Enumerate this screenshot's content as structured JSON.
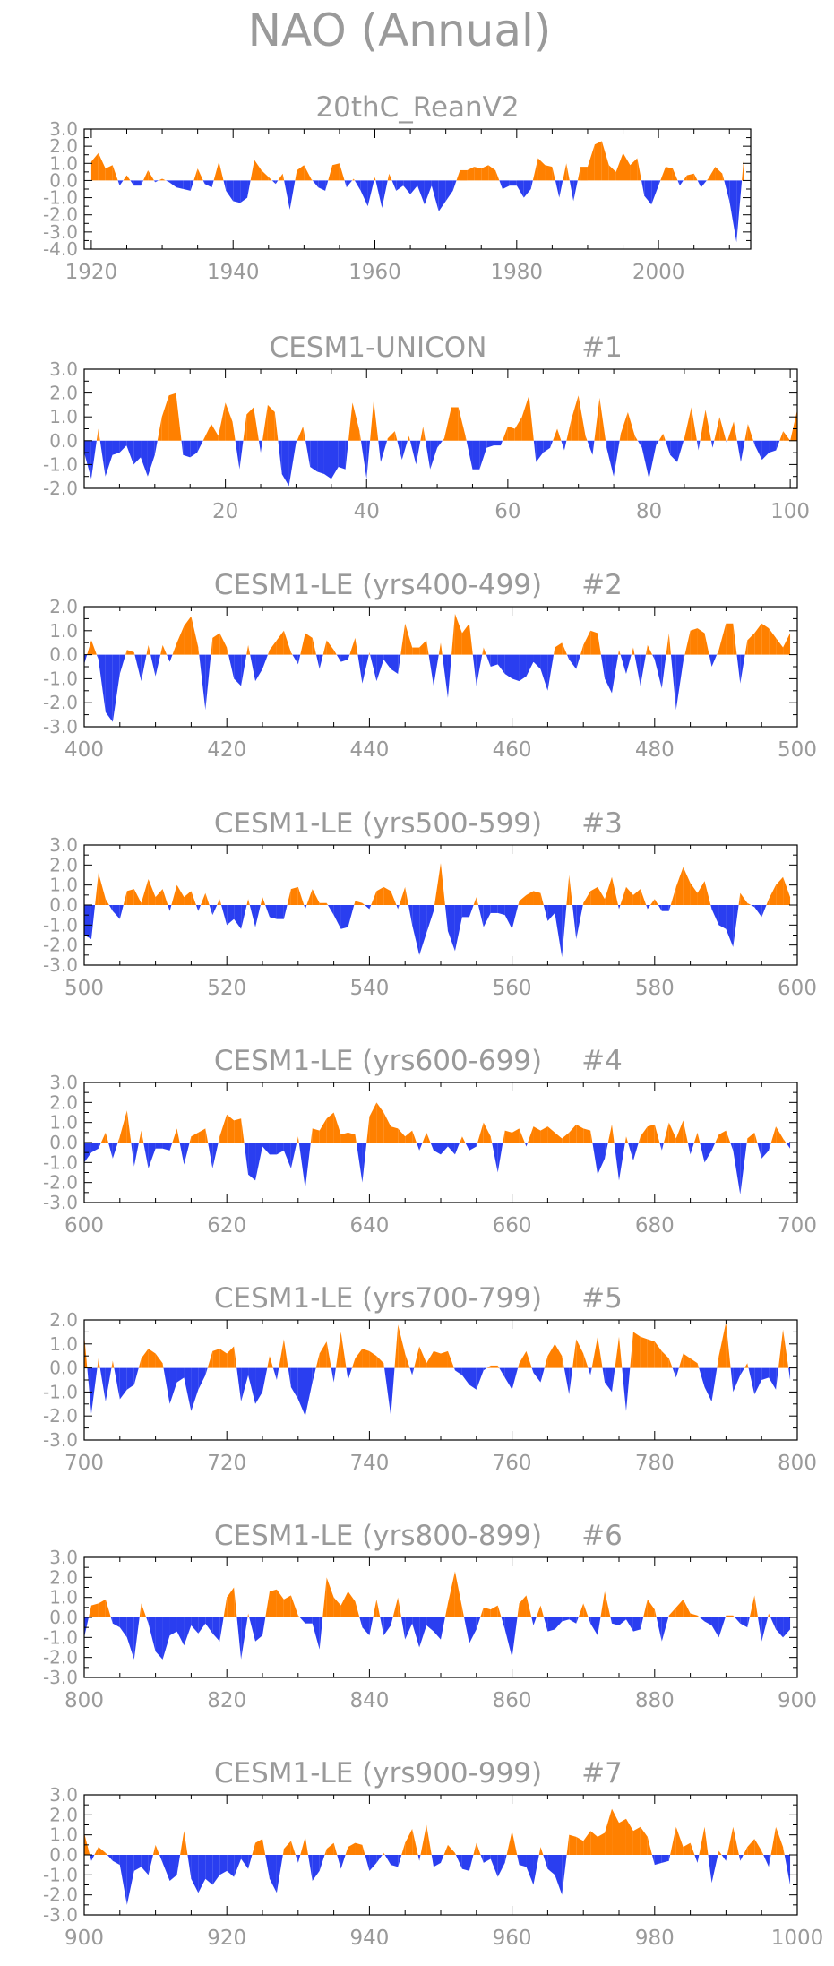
{
  "title": "NAO (Annual)",
  "colors": {
    "positive": "#ff8000",
    "negative": "#2a3ef0",
    "text": "#9a9a9a",
    "axis": "#000000"
  },
  "chart_data": [
    {
      "type": "area",
      "title": "20thC_ReanV2",
      "x_start": 1920,
      "x_end": 2012,
      "xlim": [
        1919,
        2013
      ],
      "xticks": [
        1920,
        1940,
        1960,
        1980,
        2000
      ],
      "ylim": [
        -4.0,
        3.0
      ],
      "yticks": [
        "3.0",
        "2.0",
        "1.0",
        "0.0",
        "-1.0",
        "-2.0",
        "-3.0",
        "-4.0"
      ],
      "values": [
        1.1,
        1.6,
        0.7,
        0.9,
        -0.3,
        0.3,
        -0.3,
        -0.3,
        0.6,
        -0.1,
        0.1,
        -0.1,
        -0.4,
        -0.5,
        -0.6,
        0.7,
        -0.2,
        -0.4,
        1.1,
        -0.6,
        -1.2,
        -1.3,
        -1.0,
        1.2,
        0.6,
        0.2,
        -0.2,
        0.4,
        -1.7,
        0.6,
        0.9,
        0.1,
        -0.4,
        -0.6,
        0.9,
        1.0,
        -0.4,
        0.1,
        -0.6,
        -1.5,
        0.2,
        -1.6,
        0.4,
        -0.6,
        -0.3,
        -0.8,
        -0.3,
        -1.4,
        -0.3,
        -1.8,
        -1.2,
        -0.6,
        0.6,
        0.6,
        0.8,
        0.7,
        0.9,
        0.6,
        -0.5,
        -0.3,
        -0.3,
        -1.0,
        -0.5,
        1.3,
        0.9,
        0.8,
        -1.0,
        1.0,
        -1.2,
        0.8,
        0.8,
        2.1,
        2.3,
        0.9,
        0.5,
        1.6,
        0.9,
        1.3,
        -0.9,
        -1.4,
        -0.3,
        0.8,
        0.7,
        -0.3,
        0.3,
        0.4,
        -0.4,
        0.1,
        0.8,
        0.4,
        -1.2,
        -3.6,
        1.2
      ]
    },
    {
      "type": "area",
      "title": "CESM1-UNICON",
      "tag": "#1",
      "x_start": 0,
      "x_end": 101,
      "xlim": [
        0,
        101
      ],
      "xticks": [
        20,
        40,
        60,
        80,
        100
      ],
      "ylim": [
        -2.0,
        3.0
      ],
      "yticks": [
        "3.0",
        "2.0",
        "1.0",
        "0.0",
        "-1.0",
        "-2.0"
      ],
      "values": [
        -0.5,
        -1.6,
        0.5,
        -1.5,
        -0.6,
        -0.5,
        -0.2,
        -1.0,
        -0.7,
        -1.5,
        -0.6,
        1.0,
        1.9,
        2.0,
        -0.6,
        -0.7,
        -0.5,
        0.1,
        0.7,
        0.2,
        1.6,
        0.8,
        -1.2,
        1.1,
        1.4,
        -0.5,
        1.5,
        1.2,
        -1.4,
        -1.9,
        -0.1,
        0.6,
        -1.1,
        -1.3,
        -1.4,
        -1.6,
        -1.1,
        -1.2,
        1.6,
        0.4,
        -1.6,
        1.7,
        -0.9,
        0.1,
        0.4,
        -0.8,
        0.2,
        -1.0,
        0.6,
        -1.2,
        -0.3,
        0.1,
        1.4,
        1.4,
        0.2,
        -1.2,
        -1.2,
        -0.3,
        -0.2,
        -0.2,
        0.6,
        0.5,
        1.0,
        1.9,
        -0.9,
        -0.5,
        -0.3,
        0.5,
        -0.4,
        0.9,
        1.9,
        0.2,
        -0.6,
        1.8,
        -0.3,
        -1.5,
        0.3,
        1.2,
        0.2,
        -0.3,
        -1.6,
        -0.2,
        0.3,
        -0.6,
        -0.9,
        0.1,
        1.4,
        -0.4,
        1.3,
        -0.3,
        1.0,
        -0.1,
        0.8,
        -0.9,
        0.7,
        -0.2,
        -0.8,
        -0.5,
        -0.4,
        0.4,
        0.0,
        1.3
      ]
    },
    {
      "type": "area",
      "title": "CESM1-LE (yrs400-499)",
      "tag": "#2",
      "x_start": 400,
      "x_end": 499,
      "xlim": [
        400,
        500
      ],
      "xticks": [
        400,
        420,
        440,
        460,
        480,
        500
      ],
      "ylim": [
        -3.0,
        2.0
      ],
      "yticks": [
        "2.0",
        "1.0",
        "0.0",
        "-1.0",
        "-2.0",
        "-3.0"
      ],
      "values": [
        -0.4,
        0.6,
        -0.2,
        -2.4,
        -2.8,
        -0.8,
        0.2,
        0.1,
        -1.1,
        0.4,
        -0.9,
        0.4,
        -0.3,
        0.5,
        1.2,
        1.6,
        0.3,
        -2.3,
        0.7,
        0.9,
        0.3,
        -1.0,
        -1.3,
        0.4,
        -1.1,
        -0.6,
        0.2,
        0.6,
        1.0,
        0.1,
        -0.4,
        0.9,
        0.7,
        -0.6,
        0.6,
        0.2,
        -0.3,
        -0.2,
        0.7,
        -1.2,
        0.1,
        -1.1,
        -0.2,
        -0.6,
        -0.8,
        1.3,
        0.3,
        0.3,
        0.6,
        -1.3,
        0.5,
        -1.8,
        1.7,
        0.9,
        1.3,
        -1.3,
        0.3,
        -0.5,
        -0.4,
        -0.8,
        -1.0,
        -1.1,
        -0.9,
        -0.3,
        -0.6,
        -1.5,
        0.3,
        0.5,
        -0.2,
        -0.6,
        0.4,
        1.0,
        0.9,
        -1.0,
        -1.6,
        0.2,
        -0.8,
        0.3,
        -1.3,
        0.4,
        -0.2,
        -1.4,
        0.9,
        -2.3,
        -0.3,
        1.0,
        1.1,
        0.9,
        -0.5,
        0.2,
        1.3,
        1.3,
        -1.2,
        0.6,
        0.9,
        1.3,
        1.1,
        0.7,
        0.3,
        0.9
      ]
    },
    {
      "type": "area",
      "title": "CESM1-LE (yrs500-599)",
      "tag": "#3",
      "x_start": 500,
      "x_end": 599,
      "xlim": [
        500,
        600
      ],
      "xticks": [
        500,
        520,
        540,
        560,
        580,
        600
      ],
      "ylim": [
        -3.0,
        3.0
      ],
      "yticks": [
        "3.0",
        "2.0",
        "1.0",
        "0.0",
        "-1.0",
        "-2.0",
        "-3.0"
      ],
      "values": [
        -1.5,
        -1.7,
        1.6,
        0.3,
        -0.3,
        -0.7,
        0.7,
        0.8,
        0.1,
        1.3,
        0.4,
        0.8,
        -0.3,
        1.0,
        0.4,
        0.7,
        -0.3,
        0.6,
        -0.5,
        0.3,
        -1.0,
        -0.7,
        -1.2,
        0.3,
        -1.1,
        0.4,
        -0.6,
        -0.7,
        -0.7,
        0.8,
        0.9,
        -0.2,
        0.8,
        0.1,
        0.1,
        -0.5,
        -1.2,
        -1.1,
        0.2,
        0.1,
        -0.2,
        0.7,
        0.9,
        0.7,
        -0.2,
        0.9,
        -1.0,
        -2.5,
        -1.4,
        -0.3,
        2.1,
        -1.3,
        -2.3,
        -0.6,
        -0.6,
        0.4,
        -1.1,
        -0.4,
        -0.4,
        -0.5,
        -1.2,
        0.2,
        0.5,
        0.7,
        0.6,
        -0.8,
        -0.4,
        -2.6,
        1.5,
        -1.7,
        0.1,
        0.7,
        0.9,
        0.3,
        1.4,
        -0.2,
        0.9,
        0.5,
        0.8,
        -0.2,
        0.3,
        -0.3,
        -0.3,
        0.9,
        1.9,
        1.1,
        0.6,
        1.2,
        -0.2,
        -1.0,
        -1.2,
        -2.1,
        0.6,
        0.1,
        -0.1,
        -0.6,
        0.3,
        1.0,
        1.4,
        0.4
      ]
    },
    {
      "type": "area",
      "title": "CESM1-LE (yrs600-699)",
      "tag": "#4",
      "x_start": 600,
      "x_end": 699,
      "xlim": [
        600,
        700
      ],
      "xticks": [
        600,
        620,
        640,
        660,
        680,
        700
      ],
      "ylim": [
        -3.0,
        3.0
      ],
      "yticks": [
        "3.0",
        "2.0",
        "1.0",
        "0.0",
        "-1.0",
        "-2.0",
        "-3.0"
      ],
      "values": [
        -1.0,
        -0.5,
        -0.3,
        0.5,
        -0.8,
        0.3,
        1.6,
        -1.2,
        0.6,
        -1.3,
        -0.3,
        -0.3,
        -0.4,
        0.7,
        -1.1,
        0.3,
        0.5,
        0.7,
        -1.3,
        0.3,
        1.4,
        1.1,
        1.2,
        -1.6,
        -1.9,
        -0.2,
        -0.6,
        -0.6,
        -0.4,
        -1.3,
        0.3,
        -2.3,
        0.7,
        0.6,
        1.2,
        1.5,
        0.4,
        0.5,
        0.4,
        -2.0,
        1.3,
        2.0,
        1.5,
        0.8,
        0.7,
        0.3,
        0.6,
        -0.4,
        0.5,
        -0.4,
        -0.6,
        -0.2,
        -0.6,
        0.3,
        -0.4,
        -0.2,
        1.0,
        0.3,
        -1.5,
        0.6,
        0.5,
        0.7,
        -0.2,
        0.8,
        0.6,
        0.8,
        0.5,
        0.2,
        0.5,
        0.9,
        0.7,
        0.6,
        -1.6,
        -0.8,
        0.9,
        -1.9,
        0.3,
        -0.9,
        0.3,
        0.8,
        0.9,
        -0.4,
        1.0,
        0.2,
        1.1,
        -0.6,
        0.5,
        -1.0,
        -0.4,
        0.4,
        0.6,
        -0.4,
        -2.6,
        0.2,
        0.5,
        -0.8,
        -0.4,
        0.8,
        0.2,
        -0.3
      ]
    },
    {
      "type": "area",
      "title": "CESM1-LE (yrs700-799)",
      "tag": "#5",
      "x_start": 700,
      "x_end": 799,
      "xlim": [
        700,
        800
      ],
      "xticks": [
        700,
        720,
        740,
        760,
        780,
        800
      ],
      "ylim": [
        -3.0,
        2.0
      ],
      "yticks": [
        "2.0",
        "1.0",
        "0.0",
        "-1.0",
        "-2.0",
        "-3.0"
      ],
      "values": [
        1.4,
        -1.9,
        0.4,
        -1.4,
        0.3,
        -1.3,
        -0.9,
        -0.7,
        0.4,
        0.8,
        0.6,
        0.2,
        -1.5,
        -0.6,
        -0.4,
        -1.8,
        -0.9,
        -0.3,
        0.7,
        0.8,
        0.6,
        0.9,
        -1.4,
        -0.3,
        -1.5,
        -1.0,
        0.5,
        -0.5,
        1.2,
        -0.8,
        -1.3,
        -2.0,
        -0.6,
        0.6,
        1.1,
        -0.6,
        1.5,
        -0.5,
        0.4,
        0.8,
        0.7,
        0.5,
        0.2,
        -2.0,
        1.8,
        0.6,
        -0.3,
        0.9,
        0.2,
        0.7,
        0.6,
        0.7,
        -0.1,
        -0.3,
        -0.7,
        -0.9,
        -0.1,
        0.1,
        0.1,
        -0.4,
        -0.9,
        0.2,
        0.7,
        -0.2,
        -0.6,
        0.5,
        1.0,
        0.5,
        -1.1,
        1.2,
        0.6,
        -0.3,
        1.3,
        -0.6,
        -1.0,
        1.3,
        -1.8,
        1.5,
        1.3,
        1.2,
        1.1,
        0.7,
        0.4,
        -0.4,
        0.6,
        0.4,
        0.2,
        -0.8,
        -1.4,
        0.5,
        1.9,
        -1.0,
        -0.3,
        0.2,
        -1.1,
        -0.5,
        -0.4,
        -0.9,
        1.6,
        -0.5
      ]
    },
    {
      "type": "area",
      "title": "CESM1-LE (yrs800-899)",
      "tag": "#6",
      "x_start": 800,
      "x_end": 899,
      "xlim": [
        800,
        900
      ],
      "xticks": [
        800,
        820,
        840,
        860,
        880,
        900
      ],
      "ylim": [
        -3.0,
        3.0
      ],
      "yticks": [
        "3.0",
        "2.0",
        "1.0",
        "0.0",
        "-1.0",
        "-2.0",
        "-3.0"
      ],
      "values": [
        -1.0,
        0.6,
        0.7,
        0.9,
        -0.3,
        -0.5,
        -1.0,
        -2.1,
        0.7,
        -0.3,
        -1.7,
        -2.1,
        -0.9,
        -0.7,
        -1.4,
        -0.4,
        -0.8,
        -0.3,
        -0.8,
        -1.2,
        1.0,
        1.5,
        -2.1,
        0.2,
        -1.2,
        -0.9,
        1.3,
        1.4,
        0.9,
        1.1,
        0.1,
        -0.3,
        -0.3,
        -1.6,
        2.0,
        1.0,
        0.6,
        1.3,
        0.8,
        -0.5,
        -0.9,
        0.9,
        -0.9,
        -0.4,
        1.0,
        -1.1,
        -0.3,
        -1.5,
        -0.4,
        -0.7,
        -1.1,
        0.7,
        2.3,
        0.5,
        -1.3,
        -0.6,
        0.5,
        0.4,
        0.6,
        -0.6,
        -2.0,
        0.7,
        1.1,
        -0.4,
        0.6,
        -0.7,
        -0.6,
        -0.2,
        -0.1,
        -0.3,
        0.7,
        -0.3,
        -0.9,
        1.3,
        -0.3,
        -0.4,
        -0.1,
        -0.7,
        -0.6,
        0.9,
        0.4,
        -1.2,
        0.1,
        0.5,
        0.9,
        0.2,
        0.1,
        -0.2,
        -0.4,
        -1.0,
        0.1,
        0.1,
        -0.3,
        -0.5,
        1.1,
        -1.2,
        0.2,
        -0.6,
        -1.0,
        -0.6
      ]
    },
    {
      "type": "area",
      "title": "CESM1-LE (yrs900-999)",
      "tag": "#7",
      "x_start": 900,
      "x_end": 999,
      "xlim": [
        900,
        1000
      ],
      "xticks": [
        900,
        920,
        940,
        960,
        980,
        1000
      ],
      "ylim": [
        -3.0,
        3.0
      ],
      "yticks": [
        "3.0",
        "2.0",
        "1.0",
        "0.0",
        "-1.0",
        "-2.0",
        "-3.0"
      ],
      "values": [
        1.1,
        -0.3,
        0.4,
        0.1,
        -0.3,
        -0.5,
        -2.5,
        -0.8,
        -0.6,
        -1.0,
        0.5,
        -0.4,
        -1.3,
        -1.0,
        1.2,
        -1.2,
        -1.9,
        -1.2,
        -1.5,
        -1.0,
        -0.8,
        -1.1,
        -0.2,
        -0.7,
        0.6,
        0.8,
        -1.2,
        -1.9,
        0.3,
        0.7,
        -0.4,
        0.9,
        -1.3,
        -0.8,
        0.3,
        0.6,
        -0.7,
        0.4,
        0.6,
        0.5,
        -0.8,
        -0.4,
        0.1,
        -0.5,
        -0.6,
        0.6,
        1.3,
        -0.3,
        1.5,
        -0.6,
        -0.4,
        0.5,
        0.1,
        -0.7,
        -0.8,
        0.6,
        -0.4,
        -0.2,
        -1.1,
        -0.4,
        1.2,
        -0.5,
        -0.6,
        -1.5,
        0.4,
        -0.7,
        -1.0,
        -2.0,
        1.0,
        0.9,
        0.7,
        1.2,
        0.9,
        1.1,
        2.3,
        1.6,
        1.8,
        1.2,
        1.4,
        0.9,
        -0.5,
        -0.4,
        -0.3,
        1.4,
        0.4,
        0.6,
        -0.4,
        1.4,
        -1.4,
        0.2,
        -0.3,
        1.4,
        -0.3,
        0.4,
        0.8,
        0.2,
        -0.6,
        1.4,
        0.4,
        -1.5
      ]
    }
  ]
}
